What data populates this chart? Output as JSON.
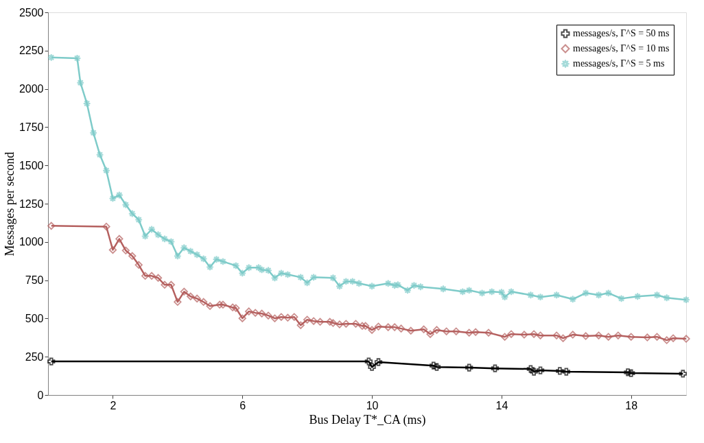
{
  "chart_data": {
    "type": "line",
    "xlabel": "Bus Delay T*_CA (ms)",
    "ylabel": "Messages per second",
    "xlim": [
      0,
      19.7
    ],
    "xticks": [
      2,
      6,
      10,
      14,
      18
    ],
    "ylim": [
      0,
      2500
    ],
    "yticks": [
      0,
      250,
      500,
      750,
      1000,
      1250,
      1500,
      1750,
      2000,
      2250,
      2500
    ],
    "grid": false,
    "legend": "top right",
    "line_style": "solid",
    "series": [
      {
        "name": "messages/s, Γ^S = 50 ms",
        "color": "#000000",
        "marker": "cross",
        "x": [
          0.1,
          9.9,
          10.0,
          10.2,
          11.9,
          12.0,
          13.0,
          13.8,
          14.9,
          15.0,
          15.2,
          15.8,
          16.0,
          17.9,
          18.0,
          19.6
        ],
        "values": [
          219,
          219,
          183,
          215,
          192,
          183,
          179,
          174,
          170,
          152,
          161,
          157,
          152,
          148,
          143,
          139
        ]
      },
      {
        "name": "messages/s, Γ^S = 10 ms",
        "color": "#b5605f",
        "marker": "diamond",
        "x": [
          0.1,
          1.8,
          2.0,
          2.2,
          2.4,
          2.6,
          2.8,
          3.0,
          3.2,
          3.4,
          3.6,
          3.8,
          4.0,
          4.2,
          4.4,
          4.6,
          4.8,
          5.0,
          5.3,
          5.4,
          5.7,
          5.8,
          6.0,
          6.2,
          6.4,
          6.6,
          6.8,
          7.0,
          7.2,
          7.4,
          7.6,
          7.8,
          8.0,
          8.2,
          8.4,
          8.7,
          8.8,
          9.0,
          9.2,
          9.5,
          9.7,
          9.8,
          10.0,
          10.2,
          10.5,
          10.7,
          10.9,
          11.2,
          11.6,
          11.8,
          12.0,
          12.3,
          12.6,
          13.0,
          13.2,
          13.6,
          14.1,
          14.3,
          14.7,
          15.0,
          15.2,
          15.7,
          15.9,
          16.2,
          16.6,
          17.0,
          17.3,
          17.6,
          18.0,
          18.5,
          18.8,
          19.1,
          19.3,
          19.7
        ],
        "values": [
          1105,
          1100,
          948,
          1020,
          944,
          908,
          850,
          778,
          778,
          765,
          720,
          720,
          608,
          675,
          644,
          630,
          608,
          581,
          590,
          590,
          572,
          568,
          501,
          546,
          537,
          532,
          519,
          501,
          510,
          505,
          510,
          456,
          492,
          483,
          478,
          478,
          470,
          461,
          465,
          465,
          451,
          451,
          425,
          447,
          443,
          443,
          434,
          420,
          429,
          398,
          425,
          416,
          416,
          407,
          411,
          407,
          380,
          398,
          394,
          398,
          389,
          389,
          371,
          394,
          385,
          389,
          380,
          389,
          380,
          376,
          380,
          358,
          371,
          367
        ]
      },
      {
        "name": "messages/s, Γ^S = 5 ms",
        "color": "#7ecbc9",
        "marker": "star",
        "x": [
          0.1,
          0.9,
          1.0,
          1.2,
          1.4,
          1.6,
          1.8,
          2.0,
          2.2,
          2.4,
          2.6,
          2.8,
          3.0,
          3.2,
          3.4,
          3.6,
          3.8,
          4.0,
          4.2,
          4.4,
          4.6,
          4.8,
          5.0,
          5.2,
          5.4,
          5.8,
          6.0,
          6.2,
          6.5,
          6.6,
          6.8,
          7.0,
          7.2,
          7.4,
          7.8,
          8.0,
          8.2,
          8.8,
          9.0,
          9.2,
          9.4,
          9.6,
          10.0,
          10.5,
          10.7,
          10.8,
          11.1,
          11.3,
          11.5,
          12.2,
          12.8,
          13.0,
          13.4,
          13.7,
          14.0,
          14.1,
          14.3,
          14.9,
          15.2,
          15.7,
          16.2,
          16.6,
          17.0,
          17.3,
          17.7,
          18.2,
          18.8,
          19.1,
          19.7
        ],
        "values": [
          2205,
          2200,
          2040,
          1905,
          1713,
          1570,
          1467,
          1284,
          1306,
          1243,
          1185,
          1145,
          1038,
          1082,
          1047,
          1020,
          1002,
          908,
          962,
          939,
          917,
          890,
          836,
          886,
          872,
          845,
          796,
          832,
          832,
          818,
          814,
          765,
          796,
          787,
          769,
          733,
          769,
          765,
          711,
          742,
          742,
          729,
          711,
          729,
          716,
          720,
          684,
          716,
          707,
          693,
          675,
          684,
          666,
          675,
          671,
          640,
          675,
          653,
          640,
          653,
          626,
          666,
          653,
          666,
          630,
          644,
          653,
          635,
          622
        ]
      }
    ]
  }
}
